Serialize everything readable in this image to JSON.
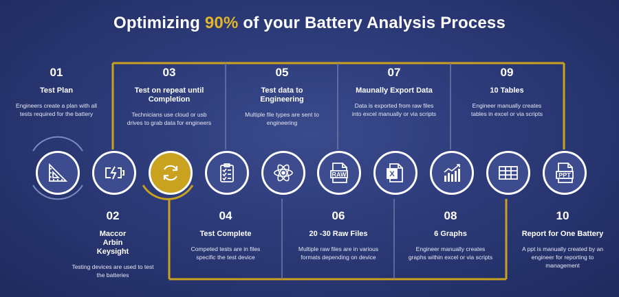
{
  "title": {
    "prefix": "Optimizing ",
    "accent": "90%",
    "suffix": " of your Battery Analysis Process"
  },
  "colors": {
    "accent": "#e3b52a",
    "background": "#2c3a78",
    "circle": "#3d4b8f",
    "gold_circle": "#c9a21f"
  },
  "steps": [
    {
      "number": "01",
      "heading": "Test Plan",
      "description": "Engineers create a plan with all tests required for the battery",
      "icon": "ruler-triangle-icon"
    },
    {
      "number": "02",
      "heading": "Maccor\nArbin\nKeysight",
      "description": "Testing devices are used to test the batteries",
      "icon": "battery-charging-icon"
    },
    {
      "number": "03",
      "heading": "Test on repeat until Completion",
      "description": "Technicians use cloud or usb drives to grab data for engineers",
      "icon": "repeat-cycle-icon"
    },
    {
      "number": "04",
      "heading": "Test Complete",
      "description": "Competed tests are in files specific the test device",
      "icon": "checklist-clipboard-icon"
    },
    {
      "number": "05",
      "heading": "Test data to Engineering",
      "description": "Multiple file types are sent to engineering",
      "icon": "atom-icon"
    },
    {
      "number": "06",
      "heading": "20 -30 Raw Files",
      "description": "Multiple raw files are in various formats depending on device",
      "icon": "raw-file-icon"
    },
    {
      "number": "07",
      "heading": "Maunally Export Data",
      "description": "Data is exported from raw files into excel manually or via scripts",
      "icon": "excel-export-icon"
    },
    {
      "number": "08",
      "heading": "6 Graphs",
      "description": "Engineer manually creates graphs within excel or via scripts",
      "icon": "bar-chart-icon"
    },
    {
      "number": "09",
      "heading": "10 Tables",
      "description": "Engineer manually creates tables in excel or via scripts",
      "icon": "table-icon"
    },
    {
      "number": "10",
      "heading": "Report for One Battery",
      "description": "A ppt is manually created by an engineer for reporting to management",
      "icon": "ppt-file-icon"
    }
  ],
  "icon_text": {
    "raw": "RAW",
    "ppt": "PPT",
    "x": "X"
  }
}
